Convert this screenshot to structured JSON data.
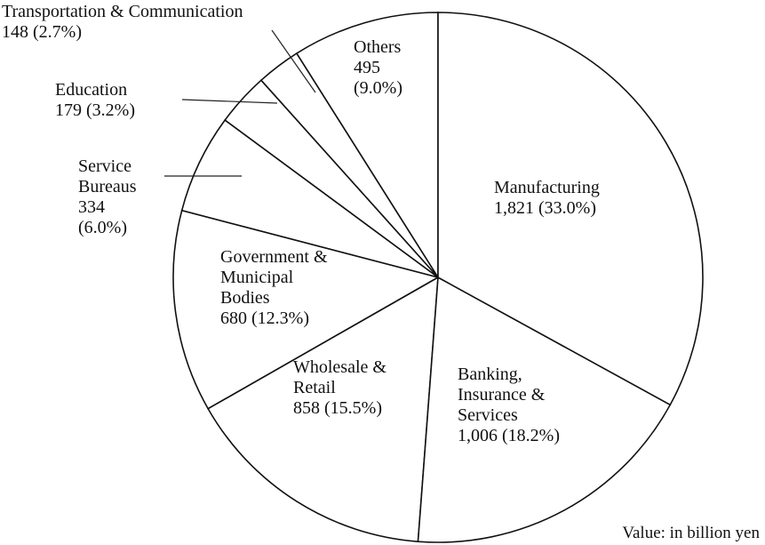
{
  "chart_data": {
    "type": "pie",
    "categories": [
      "Manufacturing",
      "Banking, Insurance & Services",
      "Wholesale & Retail",
      "Government & Municipal Bodies",
      "Service Bureaus",
      "Education",
      "Transportation & Communication",
      "Others"
    ],
    "values": [
      1821,
      1006,
      858,
      680,
      334,
      179,
      148,
      495
    ],
    "value_labels": [
      "1,821 (33.0%)",
      "1,006 (18.2%)",
      "858 (15.5%)",
      "680 (12.3%)",
      "334 (6.0%)",
      "179 (3.2%)",
      "148 (2.7%)",
      "495 (9.0%)"
    ],
    "color": "#ffffff",
    "note": "Value:  in billion yen"
  }
}
